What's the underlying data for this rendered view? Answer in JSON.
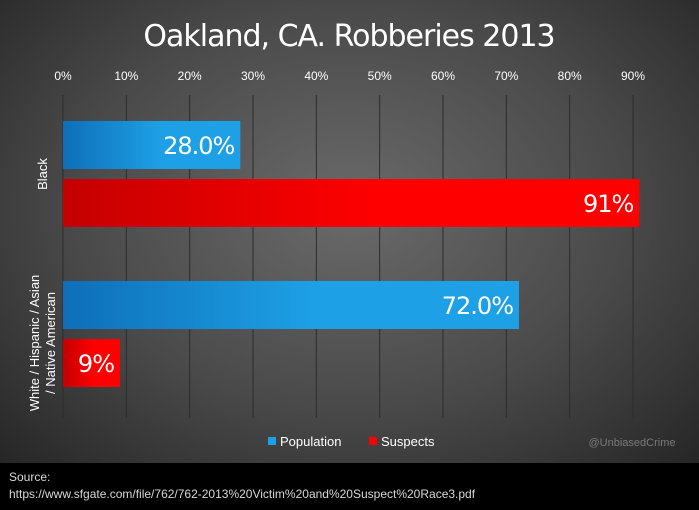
{
  "chart_data": {
    "type": "bar",
    "orientation": "horizontal",
    "title": "Oakland, CA. Robberies 2013",
    "categories": [
      "Black",
      "White / Hispanic / Asian / Native American"
    ],
    "category_label_lines": [
      [
        "Black"
      ],
      [
        "White / Hispanic / Asian",
        "/ Native American"
      ]
    ],
    "series": [
      {
        "name": "Population",
        "values": [
          28.0,
          72.0
        ],
        "labels": [
          "28.0%",
          "72.0%"
        ],
        "color": "#1ea0e6",
        "color_dark": "#0d6fb8"
      },
      {
        "name": "Suspects",
        "values": [
          91,
          9
        ],
        "labels": [
          "91%",
          "9%"
        ],
        "color": "#ff0000",
        "color_dark": "#c40000"
      }
    ],
    "xlim": [
      0,
      90
    ],
    "x_ticks": [
      "0%",
      "10%",
      "20%",
      "30%",
      "40%",
      "50%",
      "60%",
      "70%",
      "80%",
      "90%"
    ],
    "xlabel": "",
    "ylabel": "",
    "grid": true,
    "legend_position": "bottom"
  },
  "watermark": "@UnbiasedCrime",
  "source": {
    "label": "Source:",
    "url": "https://www.sfgate.com/file/762/762-2013%20Victim%20and%20Suspect%20Race3.pdf"
  }
}
